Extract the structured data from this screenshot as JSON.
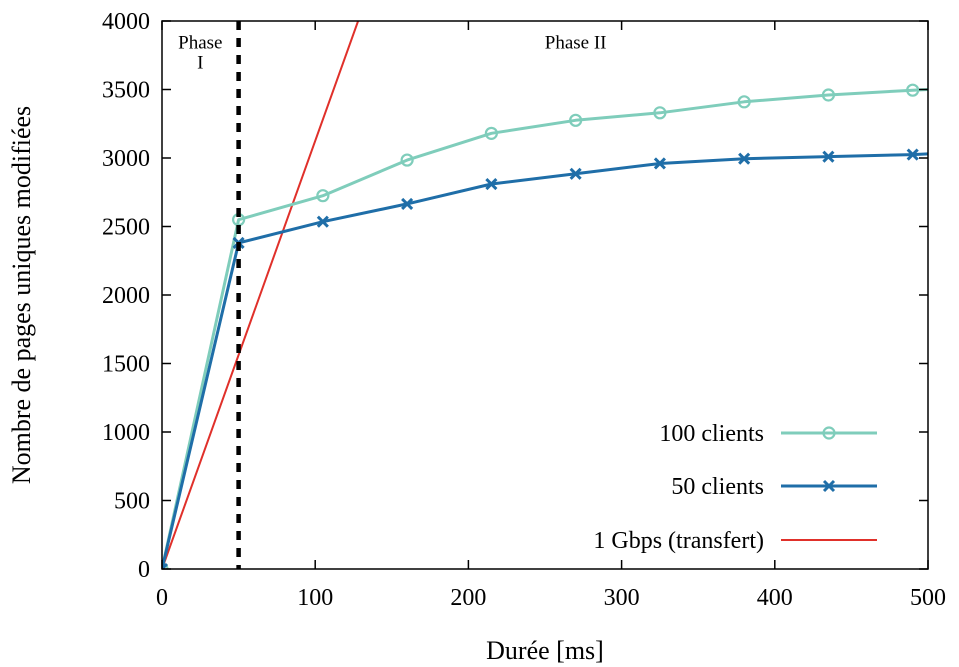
{
  "chart_data": {
    "type": "line",
    "xlabel": "Durée [ms]",
    "ylabel": "Nombre de pages uniques modifiées",
    "xlim": [
      0,
      500
    ],
    "ylim": [
      0,
      4000
    ],
    "xticks": [
      0,
      100,
      200,
      300,
      400,
      500
    ],
    "yticks": [
      0,
      500,
      1000,
      1500,
      2000,
      2500,
      3000,
      3500,
      4000
    ],
    "grid": false,
    "legend_position": "bottom-right",
    "series": [
      {
        "name": "100 clients",
        "color": "#7fcdbb",
        "marker": "circle",
        "x": [
          0,
          50,
          105,
          160,
          215,
          270,
          325,
          380,
          435,
          490,
          500
        ],
        "y": [
          0,
          2550,
          2725,
          2985,
          3180,
          3275,
          3330,
          3410,
          3460,
          3495,
          3500
        ]
      },
      {
        "name": "50 clients",
        "color": "#1f6ea8",
        "marker": "x",
        "x": [
          0,
          50,
          105,
          160,
          215,
          270,
          325,
          380,
          435,
          490,
          500
        ],
        "y": [
          0,
          2380,
          2535,
          2665,
          2810,
          2885,
          2960,
          2995,
          3010,
          3025,
          3030
        ]
      },
      {
        "name": "1 Gbps (transfert)",
        "color": "#e0302a",
        "marker": "none",
        "x": [
          0,
          128
        ],
        "y": [
          0,
          4000
        ]
      }
    ],
    "annotations": [
      {
        "type": "vline",
        "x": 50,
        "style": "dashed",
        "color": "#000000"
      },
      {
        "text": "Phase\nI",
        "x": 25,
        "y": 3800
      },
      {
        "text": "Phase II",
        "x": 270,
        "y": 3800
      }
    ]
  }
}
